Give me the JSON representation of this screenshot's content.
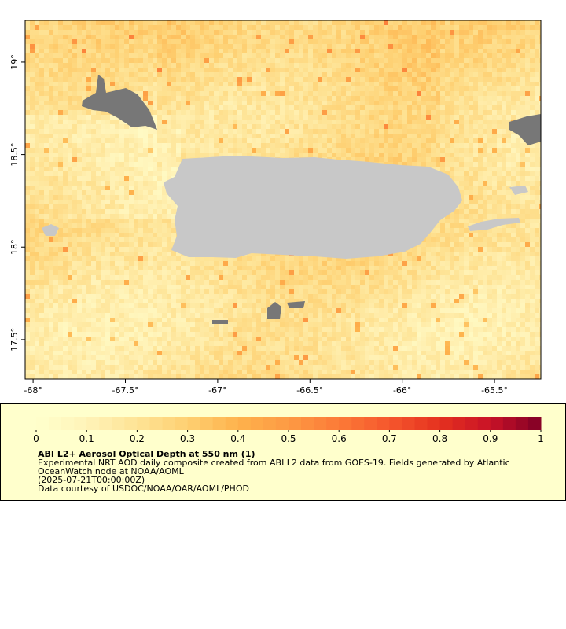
{
  "map": {
    "xlim": [
      -68.043,
      -65.249
    ],
    "ylim": [
      17.287,
      19.225
    ],
    "xticks": [
      {
        "value": -68,
        "label": "-68°"
      },
      {
        "value": -67.5,
        "label": "-67.5°"
      },
      {
        "value": -67,
        "label": "-67°"
      },
      {
        "value": -66.5,
        "label": "-66.5°"
      },
      {
        "value": -66,
        "label": "-66°"
      },
      {
        "value": -65.5,
        "label": "-65.5°"
      }
    ],
    "yticks": [
      {
        "value": 19,
        "label": "19°"
      },
      {
        "value": 18.5,
        "label": "18.5°"
      },
      {
        "value": 18,
        "label": "18°"
      },
      {
        "value": 17.5,
        "label": "17.5°"
      }
    ],
    "colorbar": {
      "range": [
        0,
        1
      ],
      "ticks": [
        0,
        0.1,
        0.2,
        0.3,
        0.4,
        0.5,
        0.6,
        0.7,
        0.8,
        0.9,
        1
      ],
      "colors": [
        "#ffffcc",
        "#fff3b8",
        "#fee395",
        "#fed072",
        "#feb24c",
        "#fd9a44",
        "#fc7a37",
        "#f5572d",
        "#e5311f",
        "#c81227",
        "#800026"
      ]
    },
    "legend": {
      "title": "ABI L2+ Aerosol Optical Depth at 550 nm (1)",
      "lines": [
        "Experimental NRT AOD daily composite created from ABI L2 data from GOES-19. Fields generated by Atlantic",
        "OceanWatch node at NOAA/AOML",
        "(2025-07-21T00:00:00Z)",
        "Data courtesy of USDOC/NOAA/OAR/AOML/PHOD"
      ]
    }
  }
}
